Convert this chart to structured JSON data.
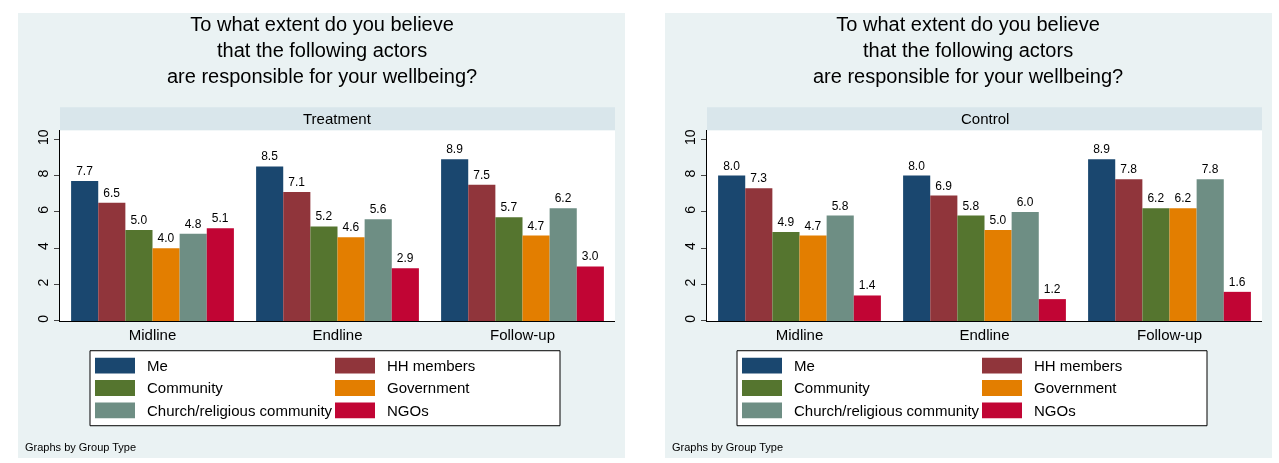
{
  "chart_data": [
    {
      "type": "bar",
      "title": "To what extent do you believe\nthat the following actors\nare responsible for your wellbeing?",
      "subtitle": "Treatment",
      "categories": [
        "Midline",
        "Endline",
        "Follow-up"
      ],
      "series": [
        {
          "name": "Me",
          "color": "#1a476f",
          "values": [
            7.7,
            8.5,
            8.9
          ],
          "value_labels": [
            "7.7",
            "8.5",
            "8.9"
          ]
        },
        {
          "name": "HH members",
          "color": "#90353b",
          "values": [
            6.5,
            7.1,
            7.5
          ],
          "value_labels": [
            "6.5",
            "7.1",
            "7.5"
          ]
        },
        {
          "name": "Community",
          "color": "#55752f",
          "values": [
            5.0,
            5.2,
            5.7
          ],
          "value_labels": [
            "5.0",
            "5.2",
            "5.7"
          ]
        },
        {
          "name": "Government",
          "color": "#e37e00",
          "values": [
            4.0,
            4.6,
            4.7
          ],
          "value_labels": [
            "4.0",
            "4.6",
            "4.7"
          ]
        },
        {
          "name": "Church/religious community",
          "color": "#6e8e84",
          "values": [
            4.8,
            5.6,
            6.2
          ],
          "value_labels": [
            "4.8",
            "5.6",
            "6.2"
          ]
        },
        {
          "name": "NGOs",
          "color": "#c10534",
          "values": [
            5.1,
            2.9,
            3.0
          ],
          "value_labels": [
            "5.1",
            "2.9",
            "3.0"
          ]
        }
      ],
      "ylim": [
        0,
        10.5
      ],
      "yticks": [
        0,
        2,
        4,
        6,
        8,
        10
      ],
      "legend": "bottom",
      "grid": false,
      "annotations": [
        "Graphs by Group Type"
      ]
    },
    {
      "type": "bar",
      "title": "To what extent do you believe\nthat the following actors\nare responsible for your wellbeing?",
      "subtitle": "Control",
      "categories": [
        "Midline",
        "Endline",
        "Follow-up"
      ],
      "series": [
        {
          "name": "Me",
          "color": "#1a476f",
          "values": [
            8.0,
            8.0,
            8.9
          ],
          "value_labels": [
            "8.0",
            "8.0",
            "8.9"
          ]
        },
        {
          "name": "HH members",
          "color": "#90353b",
          "values": [
            7.3,
            6.9,
            7.8
          ],
          "value_labels": [
            "7.3",
            "6.9",
            "7.8"
          ]
        },
        {
          "name": "Community",
          "color": "#55752f",
          "values": [
            4.9,
            5.8,
            6.2
          ],
          "value_labels": [
            "4.9",
            "5.8",
            "6.2"
          ]
        },
        {
          "name": "Government",
          "color": "#e37e00",
          "values": [
            4.7,
            5.0,
            6.2
          ],
          "value_labels": [
            "4.7",
            "5.0",
            "6.2"
          ]
        },
        {
          "name": "Church/religious community",
          "color": "#6e8e84",
          "values": [
            5.8,
            6.0,
            7.8
          ],
          "value_labels": [
            "5.8",
            "6.0",
            "7.8"
          ]
        },
        {
          "name": "NGOs",
          "color": "#c10534",
          "values": [
            1.4,
            1.2,
            1.6
          ],
          "value_labels": [
            "1.4",
            "1.2",
            "1.6"
          ]
        }
      ],
      "ylim": [
        0,
        10.5
      ],
      "yticks": [
        0,
        2,
        4,
        6,
        8,
        10
      ],
      "legend": "bottom",
      "grid": false,
      "annotations": [
        "Graphs by Group Type"
      ]
    }
  ]
}
